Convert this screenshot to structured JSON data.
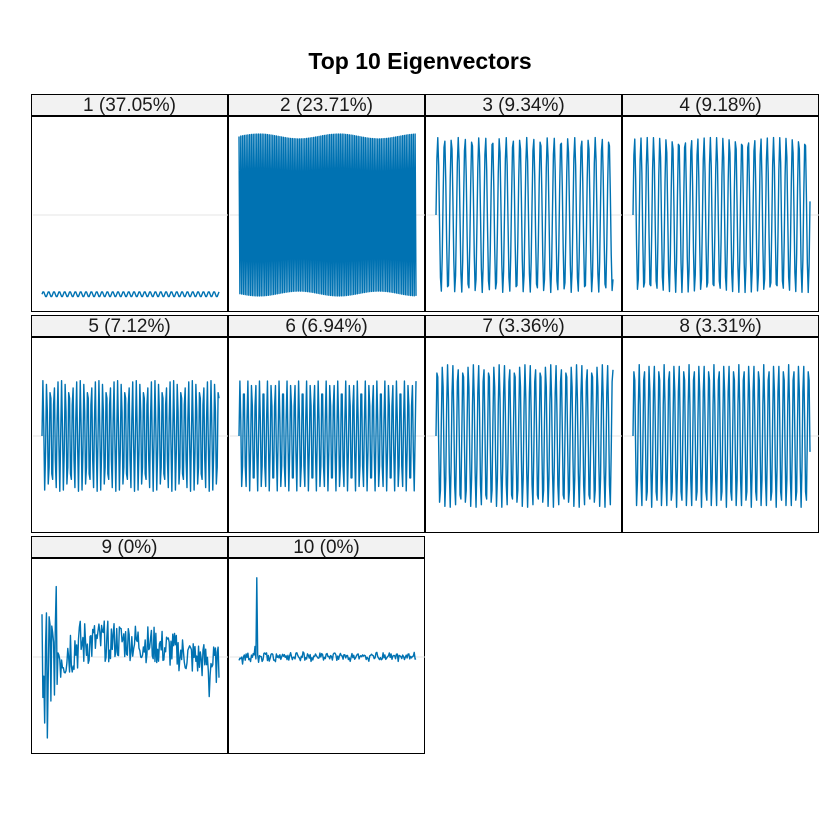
{
  "title": "Top 10 Eigenvectors",
  "colors": {
    "line": "#0072b2",
    "strip_bg": "#f2f2f2",
    "grid": "#e6e6e6"
  },
  "chart_data": {
    "type": "line",
    "title": "Top 10 Eigenvectors",
    "grid": true,
    "ylim": [
      -1,
      1
    ],
    "panels": [
      {
        "label": "1 (37.05%)",
        "pattern": "flat",
        "level": -0.9,
        "amp": 0.03,
        "period": 6
      },
      {
        "label": "2 (23.71%)",
        "pattern": "square",
        "amp": 0.92,
        "period": 2.2
      },
      {
        "label": "3 (9.34%)",
        "pattern": "sine",
        "amp": 0.88,
        "period": 7.7
      },
      {
        "label": "4 (9.18%)",
        "pattern": "sine",
        "amp": 0.88,
        "period": 7.1
      },
      {
        "label": "5 (7.12%)",
        "pattern": "sine",
        "amp": 0.63,
        "period": 4.2
      },
      {
        "label": "6 (6.94%)",
        "pattern": "sine",
        "amp": 0.63,
        "period": 4.4
      },
      {
        "label": "7 (3.36%)",
        "pattern": "sine",
        "amp": 0.81,
        "period": 5.8
      },
      {
        "label": "8 (3.31%)",
        "pattern": "sine",
        "amp": 0.81,
        "period": 5.6
      },
      {
        "label": "9 (0%)",
        "pattern": "noisy",
        "amp": 0.9
      },
      {
        "label": "10 (0%)",
        "pattern": "spike",
        "amp": 0.9
      }
    ]
  }
}
